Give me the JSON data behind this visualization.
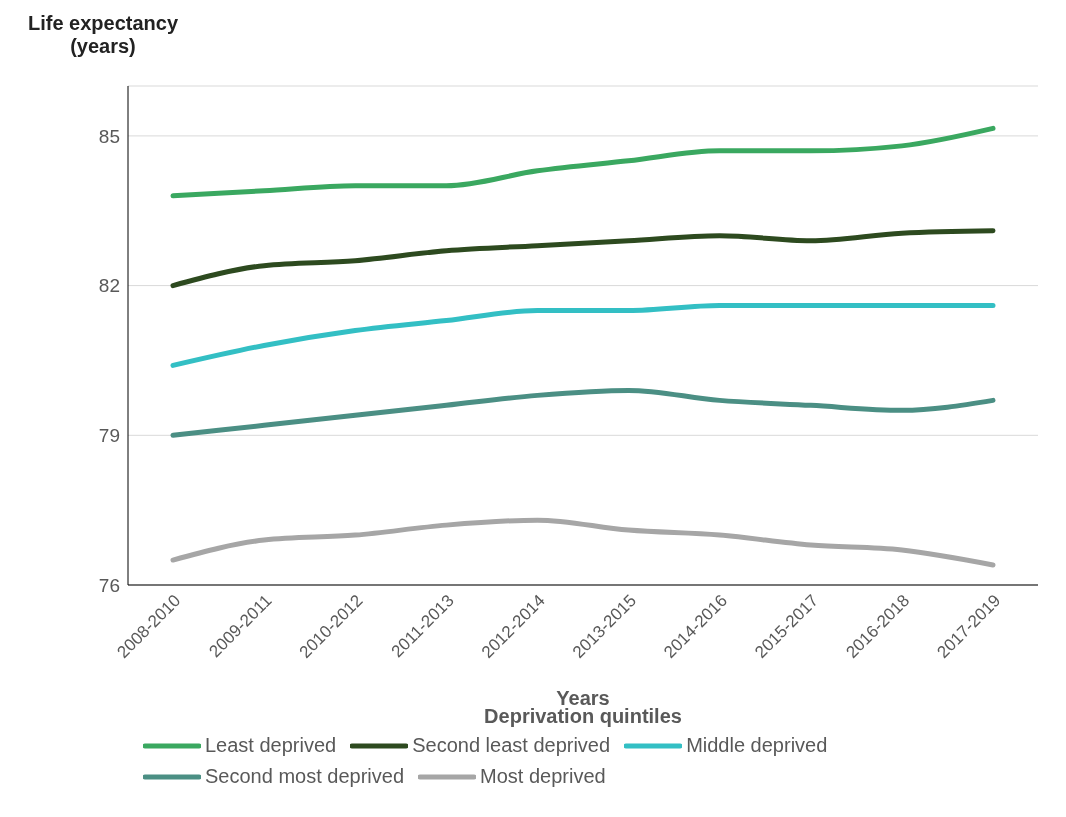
{
  "chart_data": {
    "type": "line",
    "xlabel": "Years",
    "ylabel": "Life expectancy (years)",
    "legend_title": "Deprivation quintiles",
    "categories": [
      "2008-2010",
      "2009-2011",
      "2010-2012",
      "2011-2013",
      "2012-2014",
      "2013-2015",
      "2014-2016",
      "2015-2017",
      "2016-2018",
      "2017-2019"
    ],
    "series": [
      {
        "name": "Least deprived",
        "color": "#3aa860",
        "values": [
          83.8,
          83.9,
          84.0,
          84.0,
          84.3,
          84.5,
          84.7,
          84.7,
          84.8,
          85.15
        ]
      },
      {
        "name": "Second least deprived",
        "color": "#2d4a1f",
        "values": [
          82.0,
          82.4,
          82.5,
          82.7,
          82.8,
          82.9,
          83.0,
          82.9,
          83.05,
          83.1
        ]
      },
      {
        "name": "Middle deprived",
        "color": "#33bfc4",
        "values": [
          80.4,
          80.8,
          81.1,
          81.3,
          81.5,
          81.5,
          81.6,
          81.6,
          81.6,
          81.6
        ]
      },
      {
        "name": "Second most deprived",
        "color": "#4b8f84",
        "values": [
          79.0,
          79.2,
          79.4,
          79.6,
          79.8,
          79.9,
          79.7,
          79.6,
          79.5,
          79.7
        ]
      },
      {
        "name": "Most deprived",
        "color": "#a6a6a6",
        "values": [
          76.5,
          76.9,
          77.0,
          77.2,
          77.3,
          77.1,
          77.0,
          76.8,
          76.7,
          76.4
        ]
      }
    ],
    "ylim": [
      76,
      86
    ],
    "yticks": [
      76,
      79,
      82,
      85
    ],
    "grid": "y",
    "legend": "bottom",
    "marker": "none",
    "line_style": "solid"
  }
}
